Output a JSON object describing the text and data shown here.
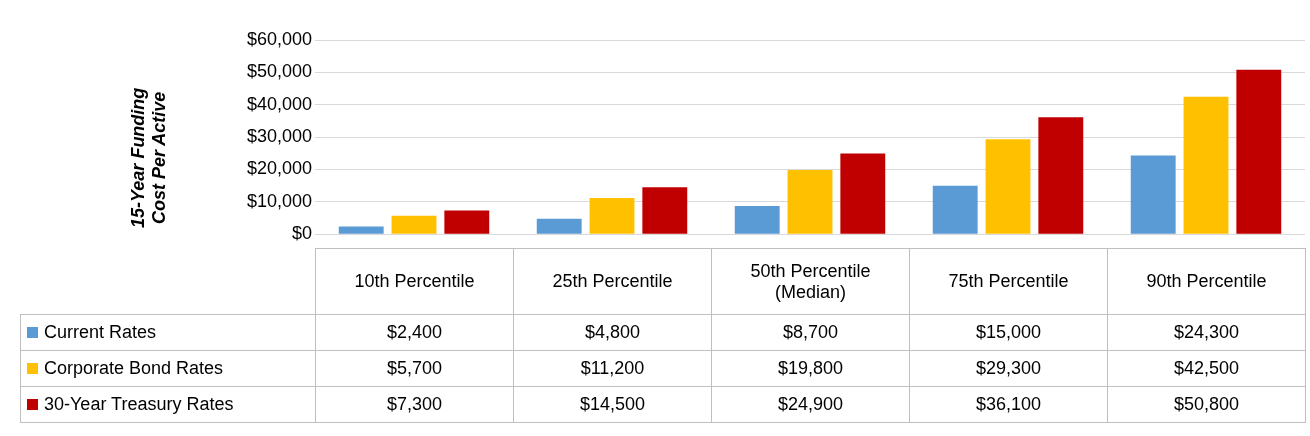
{
  "chart_data": {
    "type": "bar",
    "ylabel": "15-Year Funding Cost Per Active",
    "categories": [
      "10th Percentile",
      "25th Percentile",
      "50th Percentile (Median)",
      "75th Percentile",
      "90th Percentile"
    ],
    "series": [
      {
        "name": "Current Rates",
        "color": "#5b9bd5",
        "values": [
          2400,
          4800,
          8700,
          15000,
          24300
        ],
        "value_labels": [
          "$2,400",
          "$4,800",
          "$8,700",
          "$15,000",
          "$24,300"
        ]
      },
      {
        "name": "Corporate Bond Rates",
        "color": "#ffc000",
        "values": [
          5700,
          11200,
          19800,
          29300,
          42500
        ],
        "value_labels": [
          "$5,700",
          "$11,200",
          "$19,800",
          "$29,300",
          "$42,500"
        ]
      },
      {
        "name": "30-Year Treasury Rates",
        "color": "#c00000",
        "values": [
          7300,
          14500,
          24900,
          36100,
          50800
        ],
        "value_labels": [
          "$7,300",
          "$14,500",
          "$24,900",
          "$36,100",
          "$50,800"
        ]
      }
    ],
    "ylim": [
      0,
      60000
    ],
    "yticks": [
      {
        "value": 0,
        "label": "$0"
      },
      {
        "value": 10000,
        "label": "$10,000"
      },
      {
        "value": 20000,
        "label": "$20,000"
      },
      {
        "value": 30000,
        "label": "$30,000"
      },
      {
        "value": 40000,
        "label": "$40,000"
      },
      {
        "value": 50000,
        "label": "$50,000"
      },
      {
        "value": 60000,
        "label": "$60,000"
      }
    ],
    "grid": "y",
    "legend": "bottom"
  }
}
